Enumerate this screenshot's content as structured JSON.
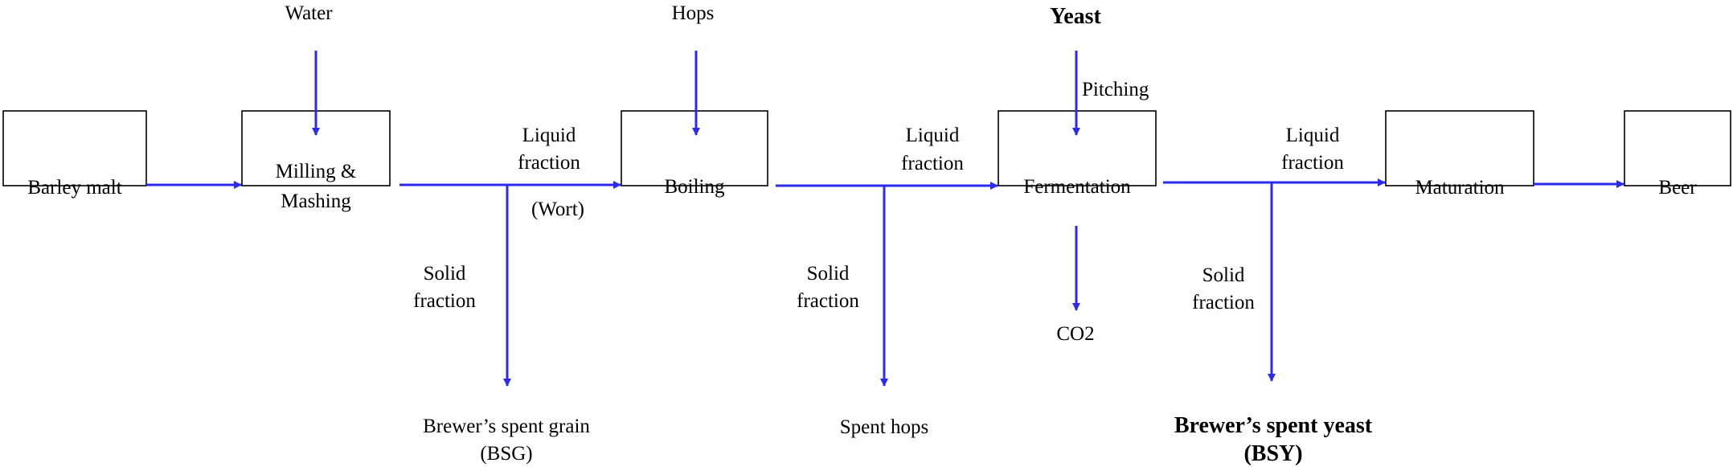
{
  "process_steps": {
    "barley_malt": "Barley malt",
    "milling_line1": "Milling &",
    "milling_line2": "Mashing",
    "boiling": "Boiling",
    "fermentation": "Fermentation",
    "maturation": "Maturation",
    "beer": "Beer"
  },
  "inputs": {
    "water": "Water",
    "hops": "Hops",
    "yeast": "Yeast",
    "pitching": "Pitching"
  },
  "branch_labels": {
    "liquid_word": "Liquid",
    "fraction_word": "fraction",
    "solid_word": "Solid",
    "wort": "(Wort)"
  },
  "outputs": {
    "co2": "CO2",
    "bsg_line1": "Brewer’s spent grain",
    "bsg_line2": "(BSG)",
    "spent_hops": "Spent hops",
    "bsy_line1": "Brewer’s spent yeast",
    "bsy_line2": "(BSY)"
  },
  "colors": {
    "arrow": "#2b2bf0",
    "box_border": "#000000",
    "text": "#000000"
  }
}
